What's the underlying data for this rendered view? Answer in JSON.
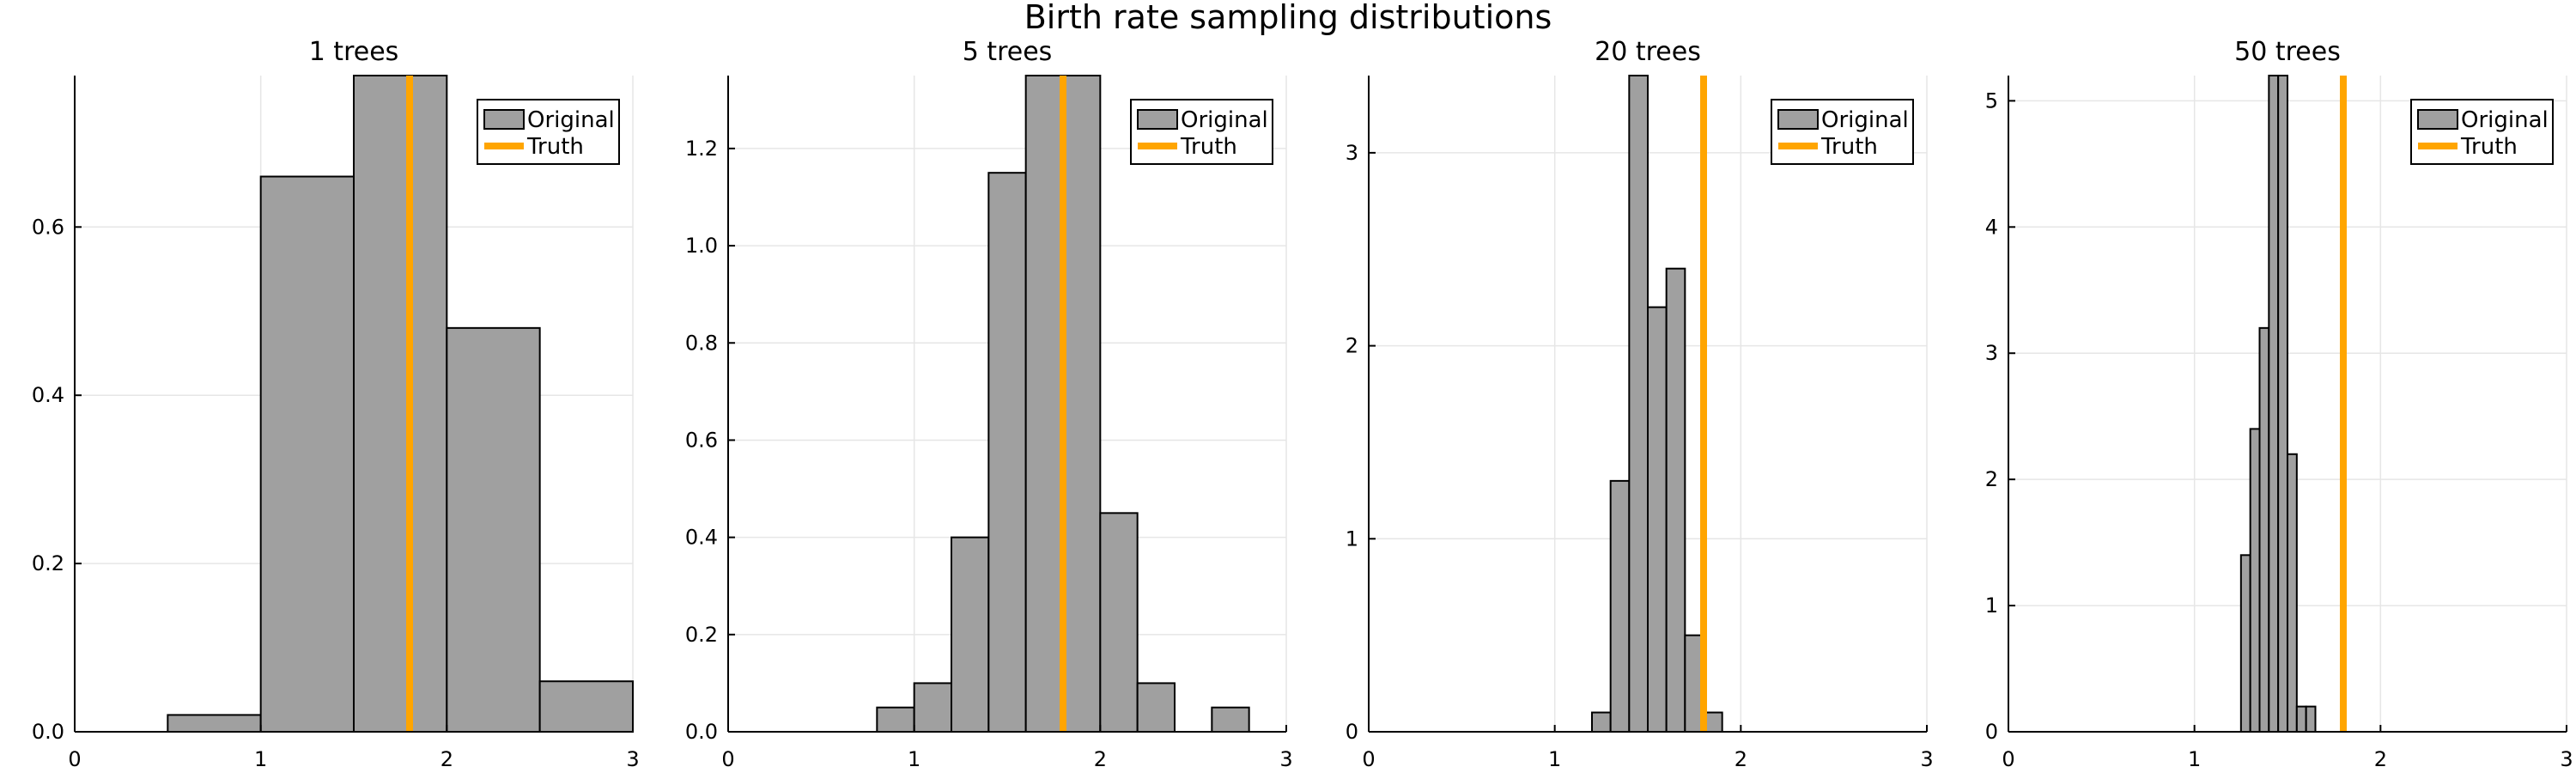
{
  "figure": {
    "title": "Birth rate sampling distributions"
  },
  "colors": {
    "bar_fill": "#a0a0a0",
    "bar_stroke": "#000000",
    "truth": "#ffa500",
    "grid": "#e6e6e6",
    "axis": "#000000"
  },
  "chart_data": [
    {
      "type": "bar",
      "title": "1 trees",
      "xlim": [
        0,
        3
      ],
      "ylim": [
        0,
        0.78
      ],
      "xticks": [
        0,
        1,
        2,
        3
      ],
      "yticks": [
        0.0,
        0.2,
        0.4,
        0.6
      ],
      "ytick_labels": [
        "0.0",
        "0.2",
        "0.4",
        "0.6"
      ],
      "bins": [
        {
          "x0": 0.5,
          "x1": 1.0,
          "value": 0.02
        },
        {
          "x0": 1.0,
          "x1": 1.5,
          "value": 0.66
        },
        {
          "x0": 1.5,
          "x1": 2.0,
          "value": 0.78
        },
        {
          "x0": 2.0,
          "x1": 2.5,
          "value": 0.48
        },
        {
          "x0": 2.5,
          "x1": 3.0,
          "value": 0.06
        }
      ],
      "truth": 1.8,
      "legend": {
        "position": "top-right",
        "entries": [
          "Original",
          "Truth"
        ]
      },
      "grid": true
    },
    {
      "type": "bar",
      "title": "5 trees",
      "xlim": [
        0,
        3
      ],
      "ylim": [
        0,
        1.35
      ],
      "xticks": [
        0,
        1,
        2,
        3
      ],
      "yticks": [
        0.0,
        0.2,
        0.4,
        0.6,
        0.8,
        1.0,
        1.2
      ],
      "ytick_labels": [
        "0.0",
        "0.2",
        "0.4",
        "0.6",
        "0.8",
        "1.0",
        "1.2"
      ],
      "bins": [
        {
          "x0": 0.8,
          "x1": 1.0,
          "value": 0.05
        },
        {
          "x0": 1.0,
          "x1": 1.2,
          "value": 0.1
        },
        {
          "x0": 1.2,
          "x1": 1.4,
          "value": 0.4
        },
        {
          "x0": 1.4,
          "x1": 1.6,
          "value": 1.15
        },
        {
          "x0": 1.6,
          "x1": 1.8,
          "value": 1.35
        },
        {
          "x0": 1.8,
          "x1": 2.0,
          "value": 1.35
        },
        {
          "x0": 2.0,
          "x1": 2.2,
          "value": 0.45
        },
        {
          "x0": 2.2,
          "x1": 2.4,
          "value": 0.1
        },
        {
          "x0": 2.6,
          "x1": 2.8,
          "value": 0.05
        }
      ],
      "truth": 1.8,
      "legend": {
        "position": "top-right",
        "entries": [
          "Original",
          "Truth"
        ]
      },
      "grid": true
    },
    {
      "type": "bar",
      "title": "20 trees",
      "xlim": [
        0,
        3
      ],
      "ylim": [
        0,
        3.4
      ],
      "xticks": [
        0,
        1,
        2,
        3
      ],
      "yticks": [
        0,
        1,
        2,
        3
      ],
      "ytick_labels": [
        "0",
        "1",
        "2",
        "3"
      ],
      "bins": [
        {
          "x0": 1.2,
          "x1": 1.3,
          "value": 0.1
        },
        {
          "x0": 1.3,
          "x1": 1.4,
          "value": 1.3
        },
        {
          "x0": 1.4,
          "x1": 1.5,
          "value": 3.4
        },
        {
          "x0": 1.5,
          "x1": 1.6,
          "value": 2.2
        },
        {
          "x0": 1.6,
          "x1": 1.7,
          "value": 2.4
        },
        {
          "x0": 1.7,
          "x1": 1.8,
          "value": 0.5
        },
        {
          "x0": 1.8,
          "x1": 1.9,
          "value": 0.1
        }
      ],
      "truth": 1.8,
      "legend": {
        "position": "top-right",
        "entries": [
          "Original",
          "Truth"
        ]
      },
      "grid": true
    },
    {
      "type": "bar",
      "title": "50 trees",
      "xlim": [
        0,
        3
      ],
      "ylim": [
        0,
        5.2
      ],
      "xticks": [
        0,
        1,
        2,
        3
      ],
      "yticks": [
        0,
        1,
        2,
        3,
        4,
        5
      ],
      "ytick_labels": [
        "0",
        "1",
        "2",
        "3",
        "4",
        "5"
      ],
      "bins": [
        {
          "x0": 1.25,
          "x1": 1.3,
          "value": 1.4
        },
        {
          "x0": 1.3,
          "x1": 1.35,
          "value": 2.4
        },
        {
          "x0": 1.35,
          "x1": 1.4,
          "value": 3.2
        },
        {
          "x0": 1.4,
          "x1": 1.45,
          "value": 5.2
        },
        {
          "x0": 1.45,
          "x1": 1.5,
          "value": 5.2
        },
        {
          "x0": 1.5,
          "x1": 1.55,
          "value": 2.2
        },
        {
          "x0": 1.55,
          "x1": 1.6,
          "value": 0.2
        },
        {
          "x0": 1.6,
          "x1": 1.65,
          "value": 0.2
        }
      ],
      "truth": 1.8,
      "legend": {
        "position": "top-right",
        "entries": [
          "Original",
          "Truth"
        ]
      },
      "grid": true
    }
  ]
}
